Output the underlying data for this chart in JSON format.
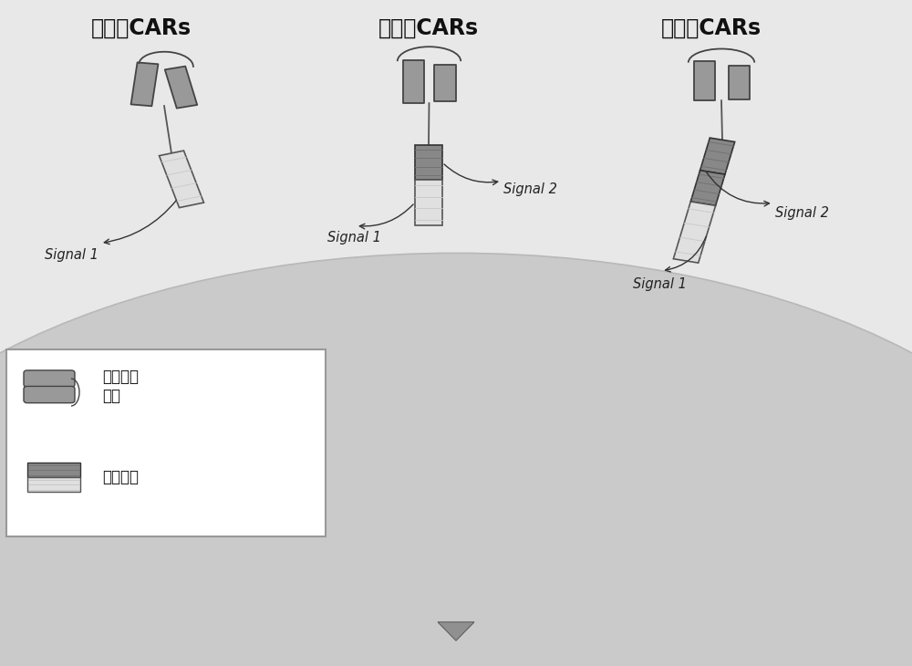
{
  "title1": "第一代CARs",
  "title2": "第二代CARs",
  "title3": "第三代CARs",
  "signal1_label": "Signal 1",
  "signal2_label": "Signal 2",
  "legend_label1": "抗原结合\n区域",
  "legend_label2": "信号区域",
  "fig_bg": "#e8e8e8",
  "cell_color": "#cccccc",
  "cell_edge": "#bbbbbb",
  "pill_fill": "#999999",
  "pill_edge": "#444444",
  "signal_dark_fill": "#888888",
  "signal_dark_edge": "#333333",
  "signal_light_fill": "#e0e0e0",
  "signal_light_edge": "#555555",
  "arrow_color": "#333333",
  "title_fontsize": 17,
  "label_fontsize": 10.5,
  "legend_fontsize": 12
}
